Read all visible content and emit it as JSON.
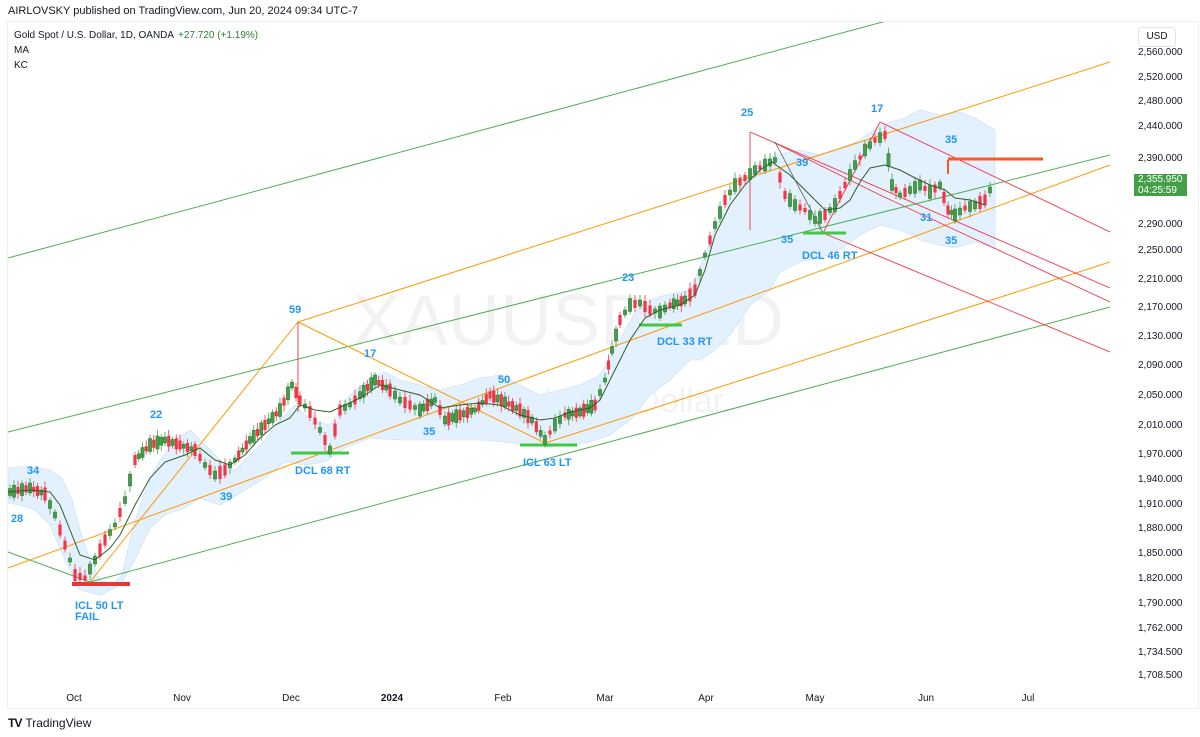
{
  "header": {
    "publisher": "AIRLOVSKY published on TradingView.com, Jun 20, 2024 09:34 UTC-7"
  },
  "legend": {
    "symbol": "Gold Spot / U.S. Dollar, 1D, OANDA",
    "change": "+27.720 (+1.19%)",
    "indicators": [
      "MA",
      "KC"
    ]
  },
  "watermark": {
    "ticker": "XAUUSD, 1D",
    "name": "Gold Spot / U.S. Dollar"
  },
  "price_axis": {
    "currency": "USD",
    "last_price": "2,355.950",
    "countdown": "04:25:59",
    "ticks": [
      "2,560.000",
      "2,520.000",
      "2,480.000",
      "2,440.000",
      "2,390.000",
      "2,290.000",
      "2,250.000",
      "2,210.000",
      "2,170.000",
      "2,130.000",
      "2,090.000",
      "2,050.000",
      "2,010.000",
      "1,970.000",
      "1,940.000",
      "1,910.000",
      "1,880.000",
      "1,850.000",
      "1,820.000",
      "1,790.000",
      "1,762.000",
      "1,734.500",
      "1,708.500"
    ]
  },
  "time_axis": {
    "labels": [
      "Oct",
      "Nov",
      "Dec",
      "2024",
      "Feb",
      "Mar",
      "Apr",
      "May",
      "Jun",
      "Jul"
    ]
  },
  "footer": {
    "brand": "TradingView"
  },
  "colors": {
    "up": "#43a047",
    "down": "#f23645",
    "annotation": "#2196f3",
    "channel_green": "#4caf50",
    "channel_orange": "#ff9800",
    "channel_red": "#f23645",
    "keltner_fill": "#e3f0fd",
    "ma": "#2e5e2e"
  },
  "annotations": {
    "cycle_counts": [
      "34",
      "28",
      "22",
      "39",
      "59",
      "17",
      "35",
      "50",
      "23",
      "25",
      "39",
      "35",
      "17",
      "35",
      "31",
      "35"
    ],
    "lows": [
      "ICL 50 LT",
      "FAIL",
      "DCL 68 RT",
      "ICL 63 LT",
      "DCL 33 RT",
      "DCL 46 RT"
    ]
  },
  "chart_data": {
    "type": "candlestick",
    "title": "Gold Spot / U.S. Dollar, 1D, OANDA",
    "symbol": "XAUUSD",
    "timeframe": "1D",
    "xlabel": "",
    "ylabel": "USD",
    "ylim": [
      1708.5,
      2580
    ],
    "x_ticks": [
      "Oct",
      "Nov",
      "Dec",
      "2024",
      "Feb",
      "Mar",
      "Apr",
      "May",
      "Jun",
      "Jul"
    ],
    "y_ticks": [
      2560,
      2520,
      2480,
      2440,
      2390,
      2290,
      2250,
      2210,
      2170,
      2130,
      2090,
      2050,
      2010,
      1970,
      1940,
      1910,
      1880,
      1850,
      1820,
      1790,
      1762,
      1734.5,
      1708.5
    ],
    "last_price": 2355.95,
    "change": 27.72,
    "change_pct": 1.19,
    "indicators": [
      "MA",
      "KC (Keltner Channel)"
    ],
    "key_points": [
      {
        "label": "34",
        "date": "Sep",
        "type": "high",
        "approx_price": 1945
      },
      {
        "label": "28",
        "date": "Sep",
        "type": "low",
        "approx_price": 1905
      },
      {
        "label": "ICL 50 LT FAIL",
        "date": "Oct 6",
        "type": "low",
        "approx_price": 1812
      },
      {
        "label": "22",
        "date": "late Oct",
        "type": "high",
        "approx_price": 2005
      },
      {
        "label": "39",
        "date": "Nov 13",
        "type": "low",
        "approx_price": 1932
      },
      {
        "label": "59",
        "date": "Dec 4",
        "type": "high",
        "approx_price": 2147
      },
      {
        "label": "DCL 68 RT",
        "date": "Dec 13",
        "type": "low",
        "approx_price": 1973
      },
      {
        "label": "17",
        "date": "Dec 28",
        "type": "high",
        "approx_price": 2088
      },
      {
        "label": "35",
        "date": "mid Jan",
        "type": "low",
        "approx_price": 2015
      },
      {
        "label": "50",
        "date": "Feb 1",
        "type": "high",
        "approx_price": 2065
      },
      {
        "label": "ICL 63 LT",
        "date": "Feb 14",
        "type": "low",
        "approx_price": 1984
      },
      {
        "label": "23",
        "date": "Mar 8",
        "type": "high",
        "approx_price": 2195
      },
      {
        "label": "DCL 33 RT",
        "date": "Mar 19",
        "type": "low",
        "approx_price": 2146
      },
      {
        "label": "25",
        "date": "Apr 12",
        "type": "high",
        "approx_price": 2431
      },
      {
        "label": "39",
        "date": "Apr 19",
        "type": "high",
        "approx_price": 2417
      },
      {
        "label": "35",
        "date": "Apr 23",
        "type": "low",
        "approx_price": 2291
      },
      {
        "label": "DCL 46 RT",
        "date": "May 3",
        "type": "low",
        "approx_price": 2277
      },
      {
        "label": "17",
        "date": "May 20",
        "type": "high",
        "approx_price": 2450
      },
      {
        "label": "35",
        "date": "Jun",
        "type": "high",
        "approx_price": 2440
      },
      {
        "label": "31",
        "date": "May 30",
        "type": "low",
        "approx_price": 2320
      },
      {
        "label": "35",
        "date": "Jun 7",
        "type": "low",
        "approx_price": 2287
      }
    ],
    "resistance_line": {
      "price": 2390,
      "from": "Jun 7",
      "to": "Jun 26",
      "color": "#ff5722"
    },
    "channels": [
      {
        "name": "green pitchfork",
        "color": "#4caf50"
      },
      {
        "name": "orange pitchfork",
        "color": "#ff9800"
      },
      {
        "name": "red descending pitchfork",
        "color": "#f23645"
      }
    ]
  }
}
